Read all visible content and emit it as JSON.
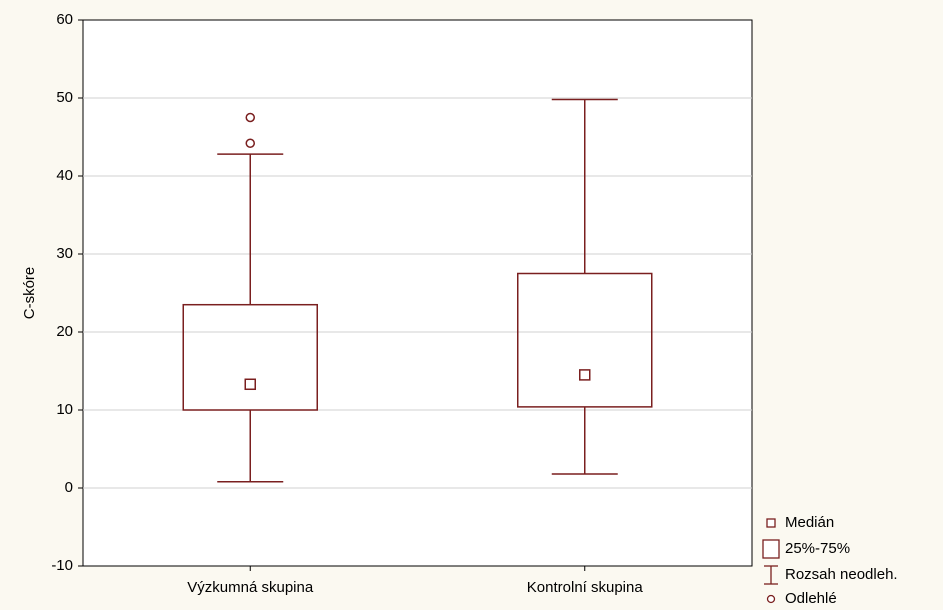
{
  "chart_data": {
    "type": "box",
    "ylabel": "C-skóre",
    "categories": [
      "Výzkumná skupina",
      "Kontrolní skupina"
    ],
    "boxes": [
      {
        "min": 0.8,
        "q1": 10,
        "median": 13.3,
        "q3": 23.5,
        "max": 42.8,
        "outliers": [
          44.2,
          47.5
        ]
      },
      {
        "min": 1.8,
        "q1": 10.4,
        "median": 14.5,
        "q3": 27.5,
        "max": 49.8,
        "outliers": []
      }
    ],
    "color": "#7a1f1f",
    "ylim": [
      -10,
      60
    ],
    "yticks": [
      -10,
      0,
      10,
      20,
      30,
      40,
      50,
      60
    ],
    "grid": true,
    "legend": {
      "position": "bottom-right",
      "items": [
        "Medián",
        "25%-75%",
        "Rozsah neodleh.",
        "Odlehlé"
      ]
    }
  }
}
